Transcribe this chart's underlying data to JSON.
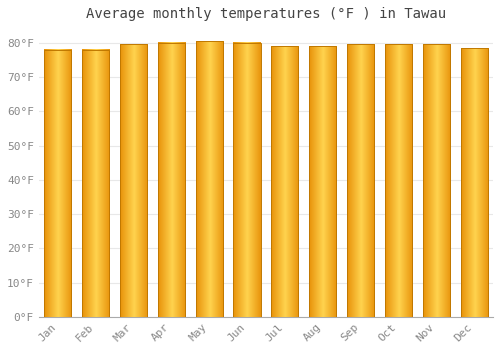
{
  "title": "Average monthly temperatures (°F ) in Tawau",
  "months": [
    "Jan",
    "Feb",
    "Mar",
    "Apr",
    "May",
    "Jun",
    "Jul",
    "Aug",
    "Sep",
    "Oct",
    "Nov",
    "Dec"
  ],
  "values": [
    78,
    78,
    79.5,
    80,
    80.5,
    80,
    79,
    79,
    79.5,
    79.5,
    79.5,
    78.5
  ],
  "bar_color_center": "#FFD34E",
  "bar_color_edge": "#E8920A",
  "bar_outline_color": "#C07800",
  "ylim": [
    0,
    84
  ],
  "yticks": [
    0,
    10,
    20,
    30,
    40,
    50,
    60,
    70,
    80
  ],
  "ytick_labels": [
    "0°F",
    "10°F",
    "20°F",
    "30°F",
    "40°F",
    "50°F",
    "60°F",
    "70°F",
    "80°F"
  ],
  "background_color": "#FFFFFF",
  "grid_color": "#E8E8E8",
  "title_fontsize": 10,
  "tick_fontsize": 8,
  "font_family": "monospace",
  "tick_color": "#888888"
}
